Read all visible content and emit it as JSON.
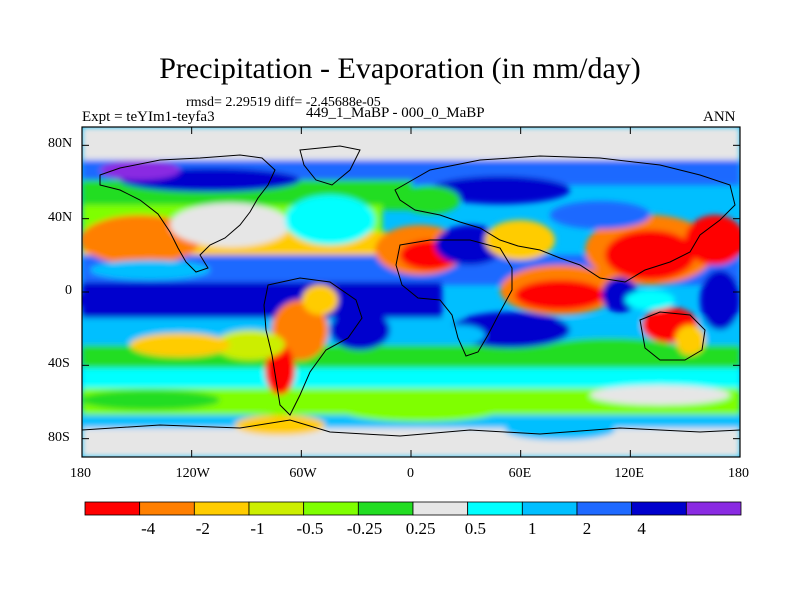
{
  "header": {
    "title": "Precipitation - Evaporation (in mm/day)",
    "stats": "rmsd= 2.29519 diff= -2.45688e-05",
    "experiment": "Expt = teYIm1-teyfa3",
    "difference": "449_1_MaBP - 000_0_MaBP",
    "season": "ANN"
  },
  "map": {
    "projection": "cylindrical-equidistant",
    "x_range": [
      -180,
      180
    ],
    "y_range": [
      -90,
      90
    ],
    "lat_ticks": [
      {
        "value": 80,
        "label": "80N"
      },
      {
        "value": 40,
        "label": "40N"
      },
      {
        "value": 0,
        "label": "0"
      },
      {
        "value": -40,
        "label": "40S"
      },
      {
        "value": -80,
        "label": "80S"
      }
    ],
    "lon_ticks": [
      {
        "value": -180,
        "label": "180"
      },
      {
        "value": -120,
        "label": "120W"
      },
      {
        "value": -60,
        "label": "60W"
      },
      {
        "value": 0,
        "label": "0"
      },
      {
        "value": 60,
        "label": "60E"
      },
      {
        "value": 120,
        "label": "120E"
      },
      {
        "value": 180,
        "label": "180"
      }
    ]
  },
  "colorbar": {
    "colors": [
      "#ff0000",
      "#ff7f00",
      "#ffcc00",
      "#ccee00",
      "#7fff00",
      "#22dd22",
      "#e6e6e6",
      "#00ffff",
      "#00bfff",
      "#1e69ff",
      "#0000cd",
      "#8a2be2"
    ],
    "labels": [
      "-4",
      "-2",
      "-1",
      "-0.5",
      "-0.25",
      "0.25",
      "0.5",
      "1",
      "2",
      "4"
    ]
  }
}
